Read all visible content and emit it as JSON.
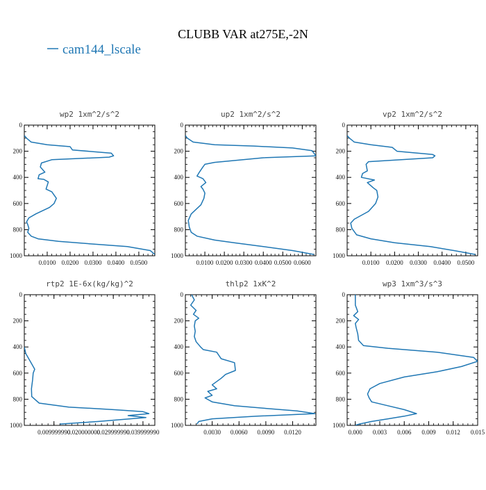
{
  "figure": {
    "title": "CLUBB VAR at275E,-2N",
    "legend_label": "cam144_lscale",
    "line_color": "#1f77b4"
  },
  "chart_data": [
    {
      "type": "line",
      "title": "wp2   1xm^2/s^2",
      "xlim": [
        0,
        0.057
      ],
      "ylim": [
        1000,
        0
      ],
      "xticks": [
        0.01,
        0.02,
        0.03,
        0.04,
        0.05
      ],
      "xtick_labels": [
        "0.0100",
        "0.0200",
        "0.0300",
        "0.0400",
        "0.0500"
      ],
      "yticks": [
        0,
        200,
        400,
        600,
        800,
        1000
      ],
      "ytick_labels": [
        "0",
        "200",
        "400",
        "600",
        "800",
        "1000"
      ],
      "series": [
        {
          "name": "cam144_lscale",
          "x": [
            0.0,
            0.001,
            0.003,
            0.01,
            0.02,
            0.021,
            0.038,
            0.039,
            0.037,
            0.012,
            0.0075,
            0.007,
            0.009,
            0.0065,
            0.006,
            0.0085,
            0.0105,
            0.0095,
            0.012,
            0.014,
            0.013,
            0.011,
            0.005,
            0.002,
            0.001,
            0.0015,
            0.002,
            0.0015,
            0.003,
            0.006,
            0.015,
            0.03,
            0.045,
            0.055,
            0.057
          ],
          "y": [
            80,
            100,
            130,
            150,
            165,
            190,
            215,
            235,
            245,
            265,
            290,
            320,
            360,
            380,
            410,
            415,
            435,
            490,
            510,
            560,
            600,
            630,
            680,
            710,
            740,
            760,
            790,
            820,
            850,
            870,
            890,
            910,
            930,
            960,
            990
          ]
        }
      ]
    },
    {
      "type": "line",
      "title": "up2   1xm^2/s^2",
      "xlim": [
        0,
        0.067
      ],
      "ylim": [
        1000,
        0
      ],
      "xticks": [
        0.01,
        0.02,
        0.03,
        0.04,
        0.05,
        0.06
      ],
      "xtick_labels": [
        "0.0100",
        "0.0200",
        "0.0300",
        "0.0400",
        "0.0500",
        "0.0600"
      ],
      "yticks": [
        0,
        200,
        400,
        600,
        800,
        1000
      ],
      "ytick_labels": [
        "0",
        "200",
        "400",
        "600",
        "800",
        "1000"
      ],
      "series": [
        {
          "name": "cam144_lscale",
          "x": [
            0.0,
            0.001,
            0.004,
            0.015,
            0.035,
            0.055,
            0.065,
            0.067,
            0.04,
            0.015,
            0.01,
            0.009,
            0.007,
            0.006,
            0.009,
            0.0105,
            0.008,
            0.009,
            0.01,
            0.0095,
            0.008,
            0.003,
            0.0015,
            0.002,
            0.003,
            0.006,
            0.015,
            0.025,
            0.04,
            0.055,
            0.066
          ],
          "y": [
            80,
            100,
            130,
            150,
            160,
            175,
            195,
            235,
            250,
            285,
            300,
            320,
            365,
            390,
            410,
            440,
            470,
            490,
            520,
            560,
            610,
            680,
            730,
            780,
            820,
            850,
            880,
            900,
            930,
            960,
            990
          ]
        }
      ]
    },
    {
      "type": "line",
      "title": "vp2   1xm^2/s^2",
      "xlim": [
        0,
        0.055
      ],
      "ylim": [
        1000,
        0
      ],
      "xticks": [
        0.01,
        0.02,
        0.03,
        0.04,
        0.05
      ],
      "xtick_labels": [
        "0.0100",
        "0.0200",
        "0.0300",
        "0.0400",
        "0.0500"
      ],
      "yticks": [
        0,
        200,
        400,
        600,
        800,
        1000
      ],
      "ytick_labels": [
        "0",
        "200",
        "400",
        "600",
        "800",
        "1000"
      ],
      "series": [
        {
          "name": "cam144_lscale",
          "x": [
            0.0,
            0.001,
            0.003,
            0.01,
            0.019,
            0.021,
            0.036,
            0.037,
            0.036,
            0.009,
            0.008,
            0.0085,
            0.0065,
            0.006,
            0.0115,
            0.0085,
            0.011,
            0.0125,
            0.013,
            0.012,
            0.009,
            0.003,
            0.0015,
            0.002,
            0.004,
            0.01,
            0.02,
            0.035,
            0.045,
            0.054
          ],
          "y": [
            80,
            100,
            130,
            150,
            170,
            200,
            225,
            235,
            250,
            280,
            300,
            350,
            370,
            400,
            420,
            440,
            480,
            500,
            550,
            600,
            660,
            720,
            750,
            790,
            840,
            870,
            900,
            930,
            960,
            990
          ]
        }
      ]
    },
    {
      "type": "line",
      "title": "rtp2   1E-6x(kg/kg)^2",
      "xlim": [
        0,
        0.044
      ],
      "ylim": [
        1000,
        0
      ],
      "xticks": [
        0.01,
        0.02,
        0.03,
        0.04
      ],
      "xtick_labels": [
        "0.009999990",
        "0.020000000",
        "0.029999990",
        "0.039999990"
      ],
      "yticks": [
        0,
        200,
        400,
        600,
        800,
        1000
      ],
      "ytick_labels": [
        "0",
        "200",
        "400",
        "600",
        "800",
        "1000"
      ],
      "series": [
        {
          "name": "cam144_lscale",
          "x": [
            0.0,
            0.0005,
            0.0015,
            0.0025,
            0.0035,
            0.003,
            0.0028,
            0.0024,
            0.0025,
            0.005,
            0.015,
            0.03,
            0.04,
            0.042,
            0.035,
            0.041,
            0.025,
            0.012
          ],
          "y": [
            400,
            450,
            490,
            530,
            570,
            600,
            650,
            720,
            780,
            830,
            860,
            880,
            895,
            910,
            925,
            940,
            970,
            990
          ]
        }
      ]
    },
    {
      "type": "line",
      "title": "thlp2   1xK^2",
      "xlim": [
        0,
        0.0146
      ],
      "ylim": [
        1000,
        0
      ],
      "xticks": [
        0.003,
        0.006,
        0.009,
        0.012
      ],
      "xtick_labels": [
        "0.0030",
        "0.0060",
        "0.0090",
        "0.0120"
      ],
      "yticks": [
        0,
        200,
        400,
        600,
        800,
        1000
      ],
      "ytick_labels": [
        "0",
        "200",
        "400",
        "600",
        "800",
        "1000"
      ],
      "series": [
        {
          "name": "cam144_lscale",
          "x": [
            0.0007,
            0.001,
            0.0006,
            0.0012,
            0.0009,
            0.0015,
            0.0011,
            0.001,
            0.0011,
            0.001,
            0.0012,
            0.0017,
            0.002,
            0.0035,
            0.004,
            0.0055,
            0.0056,
            0.0045,
            0.004,
            0.003,
            0.0035,
            0.0025,
            0.003,
            0.0022,
            0.003,
            0.0055,
            0.009,
            0.0125,
            0.0145,
            0.008,
            0.003,
            0.0015,
            0.0013
          ],
          "y": [
            0,
            40,
            80,
            120,
            150,
            180,
            200,
            240,
            280,
            320,
            360,
            400,
            420,
            440,
            490,
            520,
            580,
            610,
            640,
            690,
            720,
            740,
            770,
            790,
            820,
            850,
            870,
            890,
            910,
            930,
            950,
            970,
            990
          ]
        }
      ]
    },
    {
      "type": "line",
      "title": "wp3   1xm^3/s^3",
      "xlim": [
        -0.001,
        0.015
      ],
      "ylim": [
        1000,
        0
      ],
      "xticks": [
        0.0,
        0.003,
        0.006,
        0.009,
        0.012,
        0.015
      ],
      "xtick_labels": [
        "0.000",
        "0.003",
        "0.006",
        "0.009",
        "0.012",
        "0.015"
      ],
      "yticks": [
        0,
        200,
        400,
        600,
        800,
        1000
      ],
      "ytick_labels": [
        "0",
        "200",
        "400",
        "600",
        "800",
        "1000"
      ],
      "series": [
        {
          "name": "cam144_lscale",
          "x": [
            0.0,
            0.0,
            0.0003,
            -0.0002,
            0.0004,
            0.0,
            0.0001,
            0.0003,
            0.0004,
            0.001,
            0.004,
            0.01,
            0.0145,
            0.015,
            0.013,
            0.01,
            0.006,
            0.003,
            0.0018,
            0.0015,
            0.0017,
            0.002,
            0.004,
            0.006,
            0.0075,
            0.006,
            0.004,
            0.002,
            0.0005,
            0.0
          ],
          "y": [
            0,
            80,
            130,
            160,
            190,
            220,
            250,
            300,
            350,
            390,
            410,
            440,
            480,
            510,
            550,
            590,
            630,
            680,
            720,
            760,
            790,
            820,
            850,
            880,
            910,
            930,
            950,
            970,
            990,
            1000
          ]
        }
      ]
    }
  ]
}
